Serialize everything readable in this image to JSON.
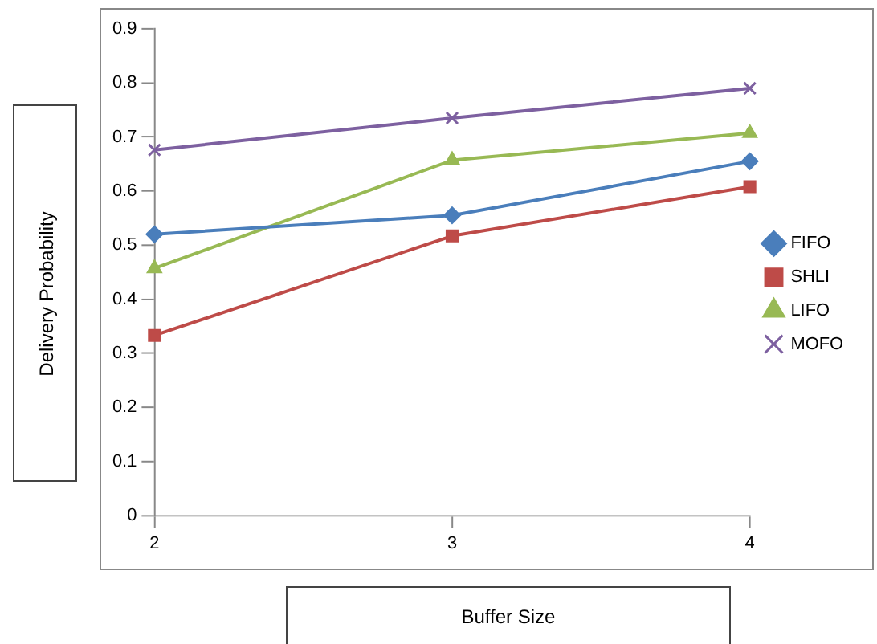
{
  "chart_data": {
    "type": "line",
    "xlabel": "Buffer Size",
    "ylabel": "Delivery Probability",
    "categories": [
      "2",
      "3",
      "4"
    ],
    "series": [
      {
        "name": "FIFO",
        "color": "#4a7ebb",
        "marker": "diamond",
        "values": [
          0.52,
          0.555,
          0.655
        ]
      },
      {
        "name": "SHLI",
        "color": "#be4b48",
        "marker": "square",
        "values": [
          0.333,
          0.517,
          0.608
        ]
      },
      {
        "name": "LIFO",
        "color": "#98b954",
        "marker": "triangle",
        "values": [
          0.457,
          0.657,
          0.707
        ]
      },
      {
        "name": "MOFO",
        "color": "#7d60a0",
        "marker": "cross",
        "values": [
          0.676,
          0.735,
          0.79
        ]
      }
    ],
    "ylim": [
      0,
      0.9
    ],
    "yticks": [
      0,
      0.1,
      0.2,
      0.3,
      0.4,
      0.5,
      0.6,
      0.7,
      0.8,
      0.9
    ],
    "grid": false,
    "legend": "right",
    "line_style": "solid"
  }
}
